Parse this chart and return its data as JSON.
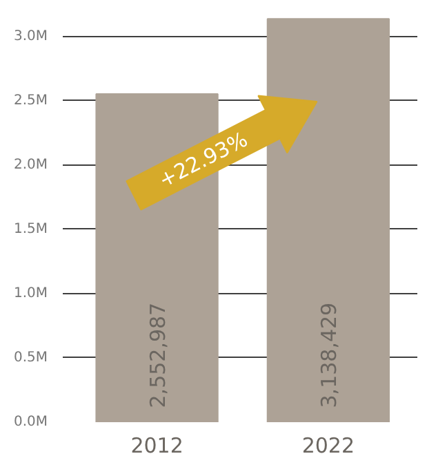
{
  "chart_data": {
    "type": "bar",
    "categories": [
      "2012",
      "2022"
    ],
    "values": [
      2552987,
      3138429
    ],
    "color": "#ada296",
    "value_labels": [
      "2,552,987",
      "3,138,429"
    ],
    "ylim": [
      0,
      3150000
    ],
    "yticks": [
      {
        "value": 0,
        "label": "0.0M"
      },
      {
        "value": 500000,
        "label": "0.5M"
      },
      {
        "value": 1000000,
        "label": "1.0M"
      },
      {
        "value": 1500000,
        "label": "1.5M"
      },
      {
        "value": 2000000,
        "label": "2.0M"
      },
      {
        "value": 2500000,
        "label": "2.5M"
      },
      {
        "value": 3000000,
        "label": "3.0M"
      }
    ],
    "grid": "y",
    "annotations": [
      "+22.93%"
    ]
  }
}
